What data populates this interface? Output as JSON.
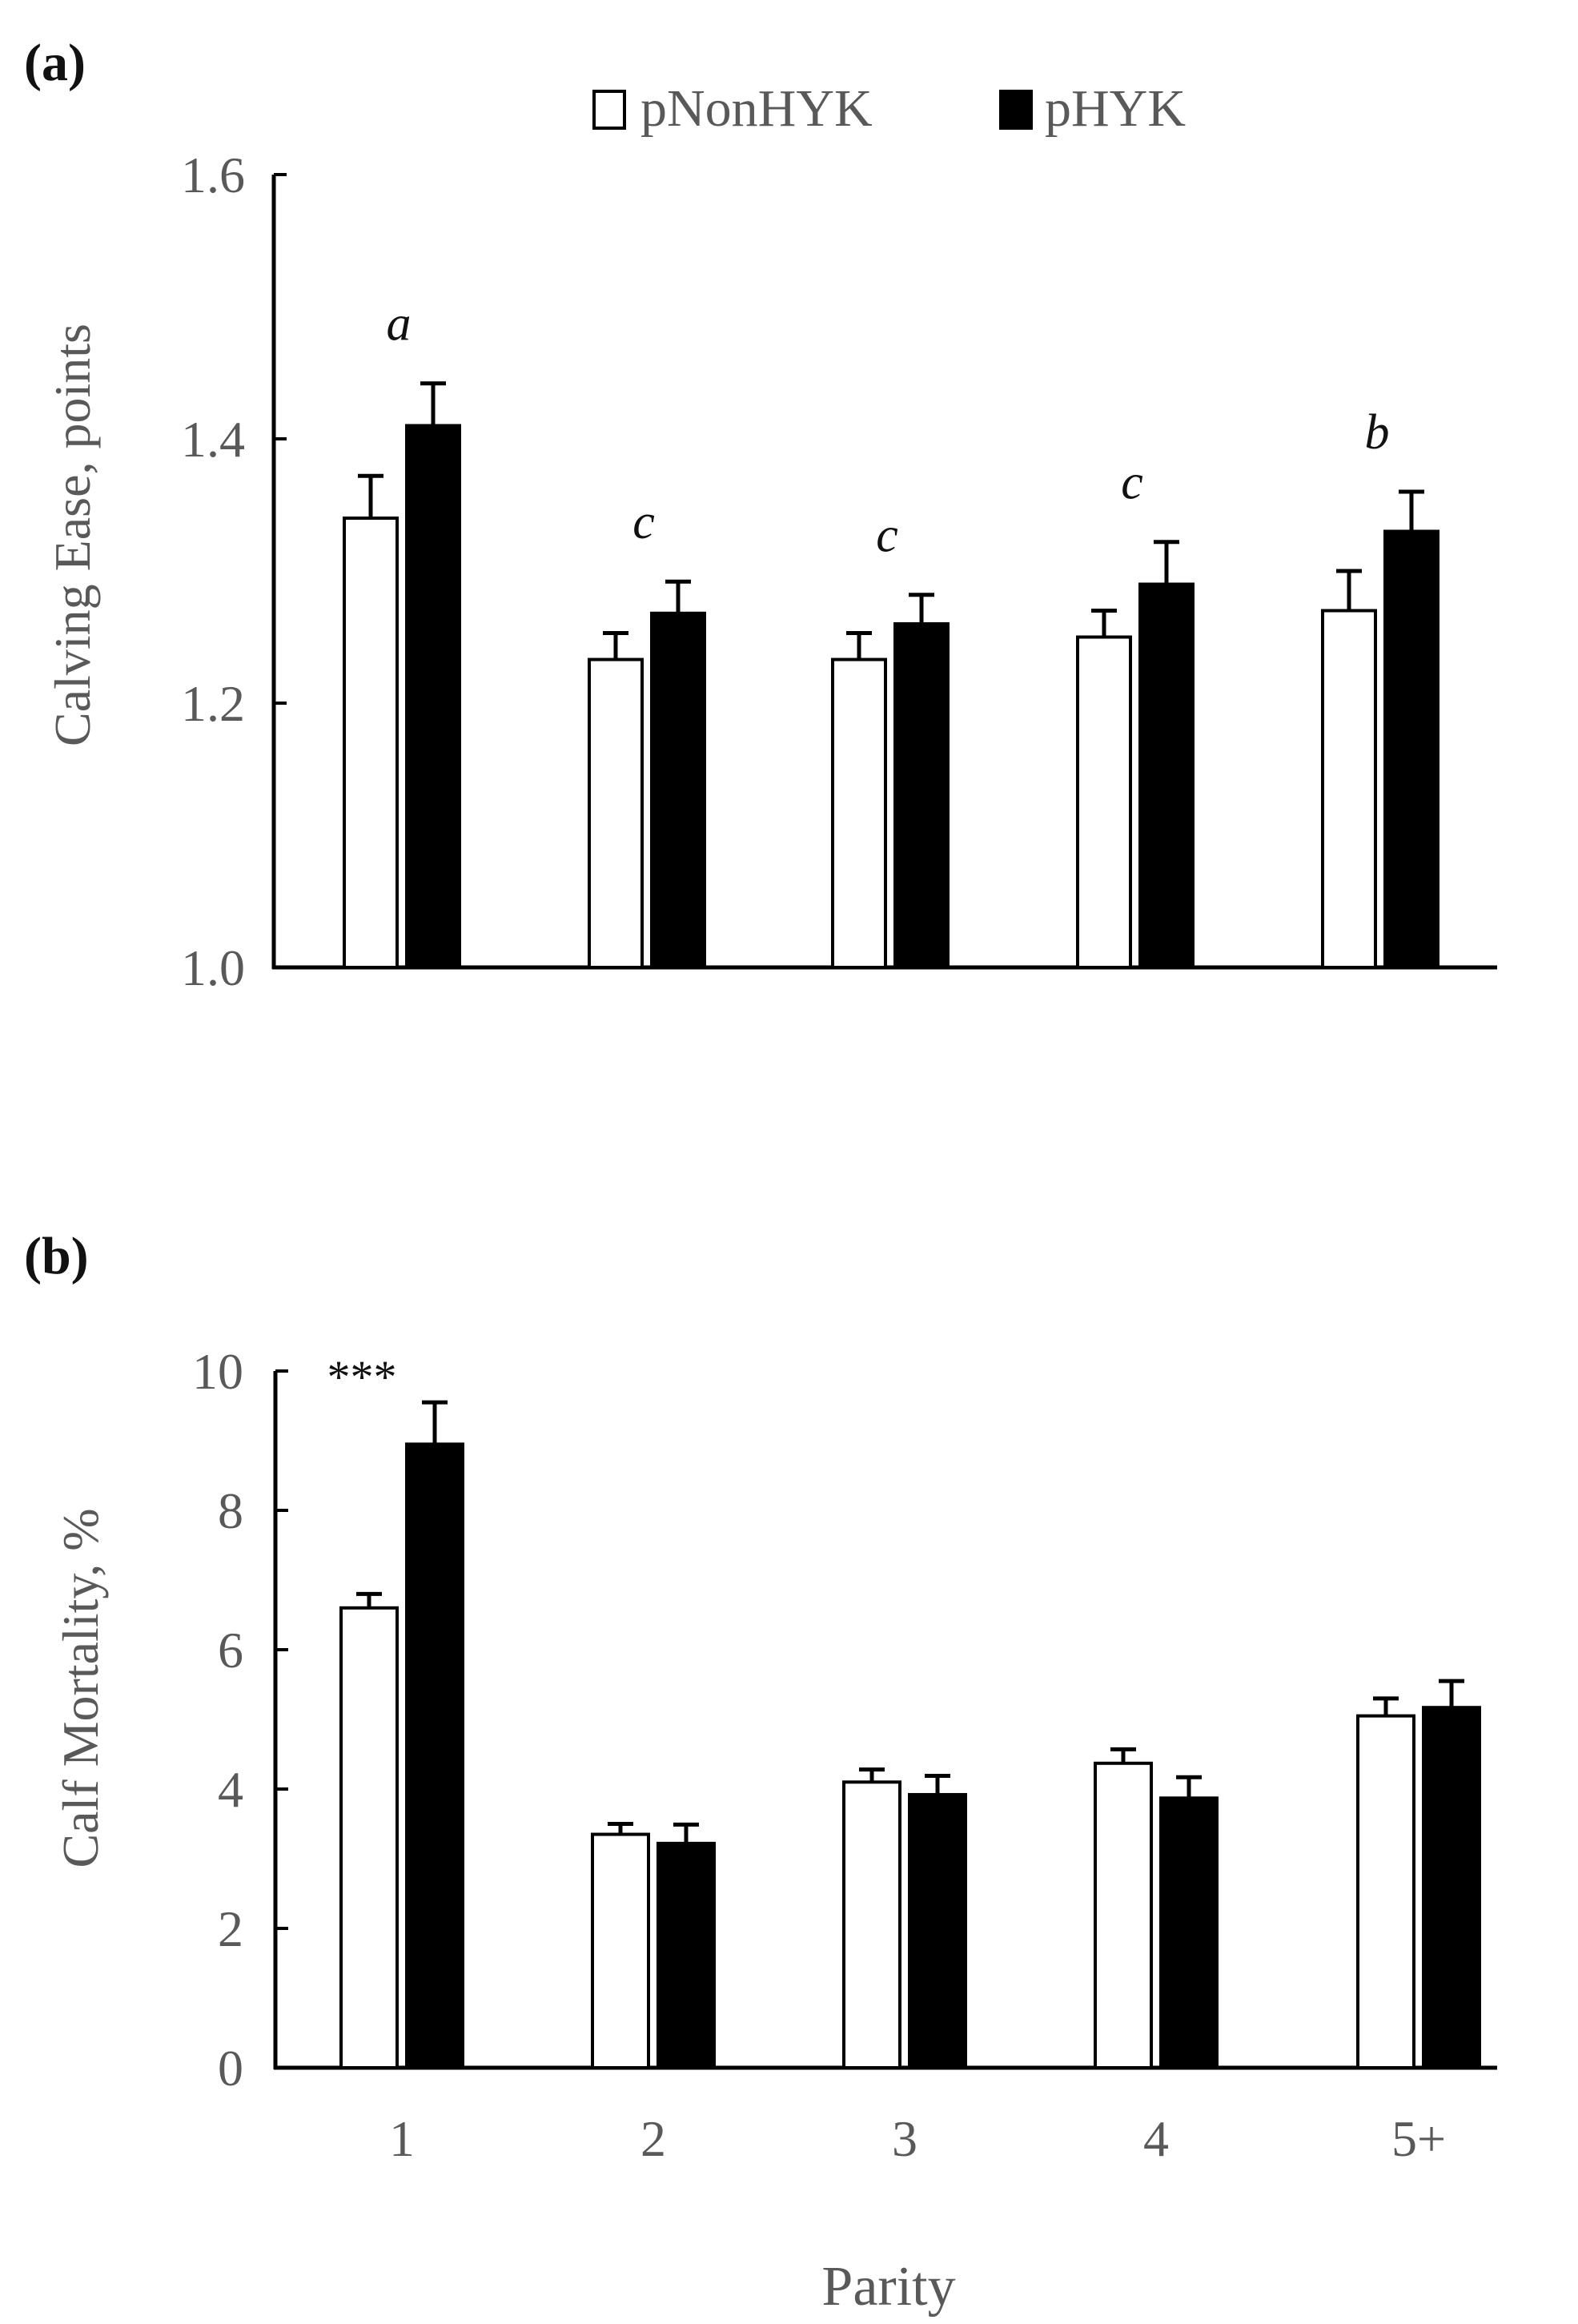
{
  "chart_data": [
    {
      "panel_label": "(a)",
      "type": "bar",
      "categories": [
        "1",
        "2",
        "3",
        "4",
        "5+"
      ],
      "series": [
        {
          "name": "pNonHYK",
          "color": "#ffffff",
          "values": [
            1.34,
            1.233,
            1.233,
            1.25,
            1.27
          ],
          "errors": [
            0.032,
            0.02,
            0.02,
            0.02,
            0.03
          ]
        },
        {
          "name": "pHYK",
          "color": "#000000",
          "values": [
            1.41,
            1.268,
            1.26,
            1.29,
            1.33
          ],
          "errors": [
            0.032,
            0.024,
            0.022,
            0.032,
            0.03
          ]
        }
      ],
      "annotations": [
        "a",
        "c",
        "c",
        "c",
        "b"
      ],
      "ylabel": "Calving Ease, points",
      "xlabel": "",
      "ylim": [
        1.0,
        1.6
      ],
      "yticks": [
        "1.0",
        "1.2",
        "1.4",
        "1.6"
      ],
      "legend": {
        "placement": "top-center",
        "entries": [
          "pNonHYK",
          "pHYK"
        ]
      }
    },
    {
      "panel_label": "(b)",
      "type": "bar",
      "categories": [
        "1",
        "2",
        "3",
        "4",
        "5+"
      ],
      "series": [
        {
          "name": "pNonHYK",
          "color": "#ffffff",
          "values": [
            6.6,
            3.35,
            4.1,
            4.37,
            5.05
          ],
          "errors": [
            0.2,
            0.15,
            0.18,
            0.2,
            0.25
          ]
        },
        {
          "name": "pHYK",
          "color": "#000000",
          "values": [
            8.95,
            3.22,
            3.92,
            3.87,
            5.17
          ],
          "errors": [
            0.6,
            0.27,
            0.27,
            0.3,
            0.38
          ]
        }
      ],
      "annotations": [
        "***",
        "",
        "",
        "",
        ""
      ],
      "ylabel": "Calf Mortality, %",
      "xlabel": "Parity",
      "ylim": [
        0,
        10
      ],
      "yticks": [
        "0",
        "2",
        "4",
        "6",
        "8",
        "10"
      ]
    }
  ]
}
